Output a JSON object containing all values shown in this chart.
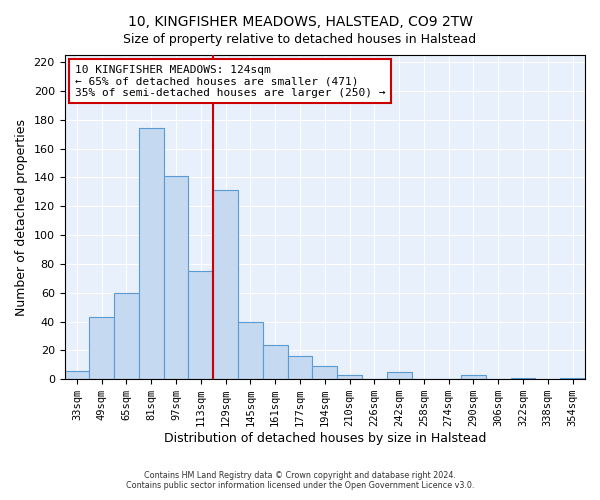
{
  "title": "10, KINGFISHER MEADOWS, HALSTEAD, CO9 2TW",
  "subtitle": "Size of property relative to detached houses in Halstead",
  "xlabel": "Distribution of detached houses by size in Halstead",
  "ylabel": "Number of detached properties",
  "bar_labels": [
    "33sqm",
    "49sqm",
    "65sqm",
    "81sqm",
    "97sqm",
    "113sqm",
    "129sqm",
    "145sqm",
    "161sqm",
    "177sqm",
    "194sqm",
    "210sqm",
    "226sqm",
    "242sqm",
    "258sqm",
    "274sqm",
    "290sqm",
    "306sqm",
    "322sqm",
    "338sqm",
    "354sqm"
  ],
  "bar_values": [
    6,
    43,
    60,
    174,
    141,
    75,
    131,
    40,
    24,
    16,
    9,
    3,
    0,
    5,
    0,
    0,
    3,
    0,
    1,
    0,
    1
  ],
  "bar_color": "#c5d9f0",
  "bar_edge_color": "#5b9bd5",
  "vline_x_index": 6,
  "vline_color": "#cc0000",
  "annotation_title": "10 KINGFISHER MEADOWS: 124sqm",
  "annotation_line1": "← 65% of detached houses are smaller (471)",
  "annotation_line2": "35% of semi-detached houses are larger (250) →",
  "annotation_box_edge": "#cc0000",
  "ylim": [
    0,
    225
  ],
  "yticks": [
    0,
    20,
    40,
    60,
    80,
    100,
    120,
    140,
    160,
    180,
    200,
    220
  ],
  "footer1": "Contains HM Land Registry data © Crown copyright and database right 2024.",
  "footer2": "Contains public sector information licensed under the Open Government Licence v3.0.",
  "bg_color": "#e8f0fc",
  "fig_bg_color": "#ffffff"
}
